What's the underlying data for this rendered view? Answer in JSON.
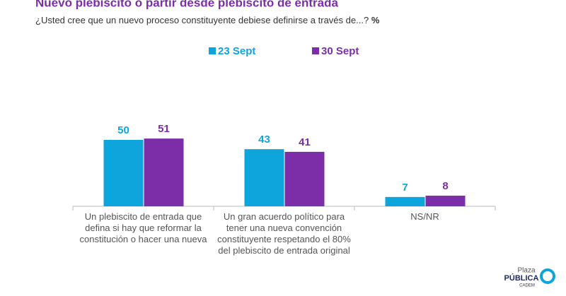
{
  "chart_data": {
    "type": "bar",
    "title": "Nuevo plebiscito o partir desde plebiscito de entrada",
    "subtitle": "¿Usted cree que un nuevo proceso constituyente debiese definirse a través de...?",
    "unit": "%",
    "categories": [
      "Un plebiscito de entrada que defina si hay que reformar la constitución o hacer una nueva",
      "Un gran acuerdo político para tener una nueva convención constituyente respetando el 80% del plebiscito de entrada original",
      "NS/NR"
    ],
    "series": [
      {
        "name": "23 Sept",
        "color": "#0ea5dd",
        "values": [
          50,
          43,
          7
        ]
      },
      {
        "name": "30 Sept",
        "color": "#7b2ea8",
        "values": [
          51,
          41,
          8
        ]
      }
    ],
    "legend": "top-center"
  },
  "logo": {
    "top": "Plaza",
    "main": "PÚBLICA",
    "sub": "CADEM"
  }
}
